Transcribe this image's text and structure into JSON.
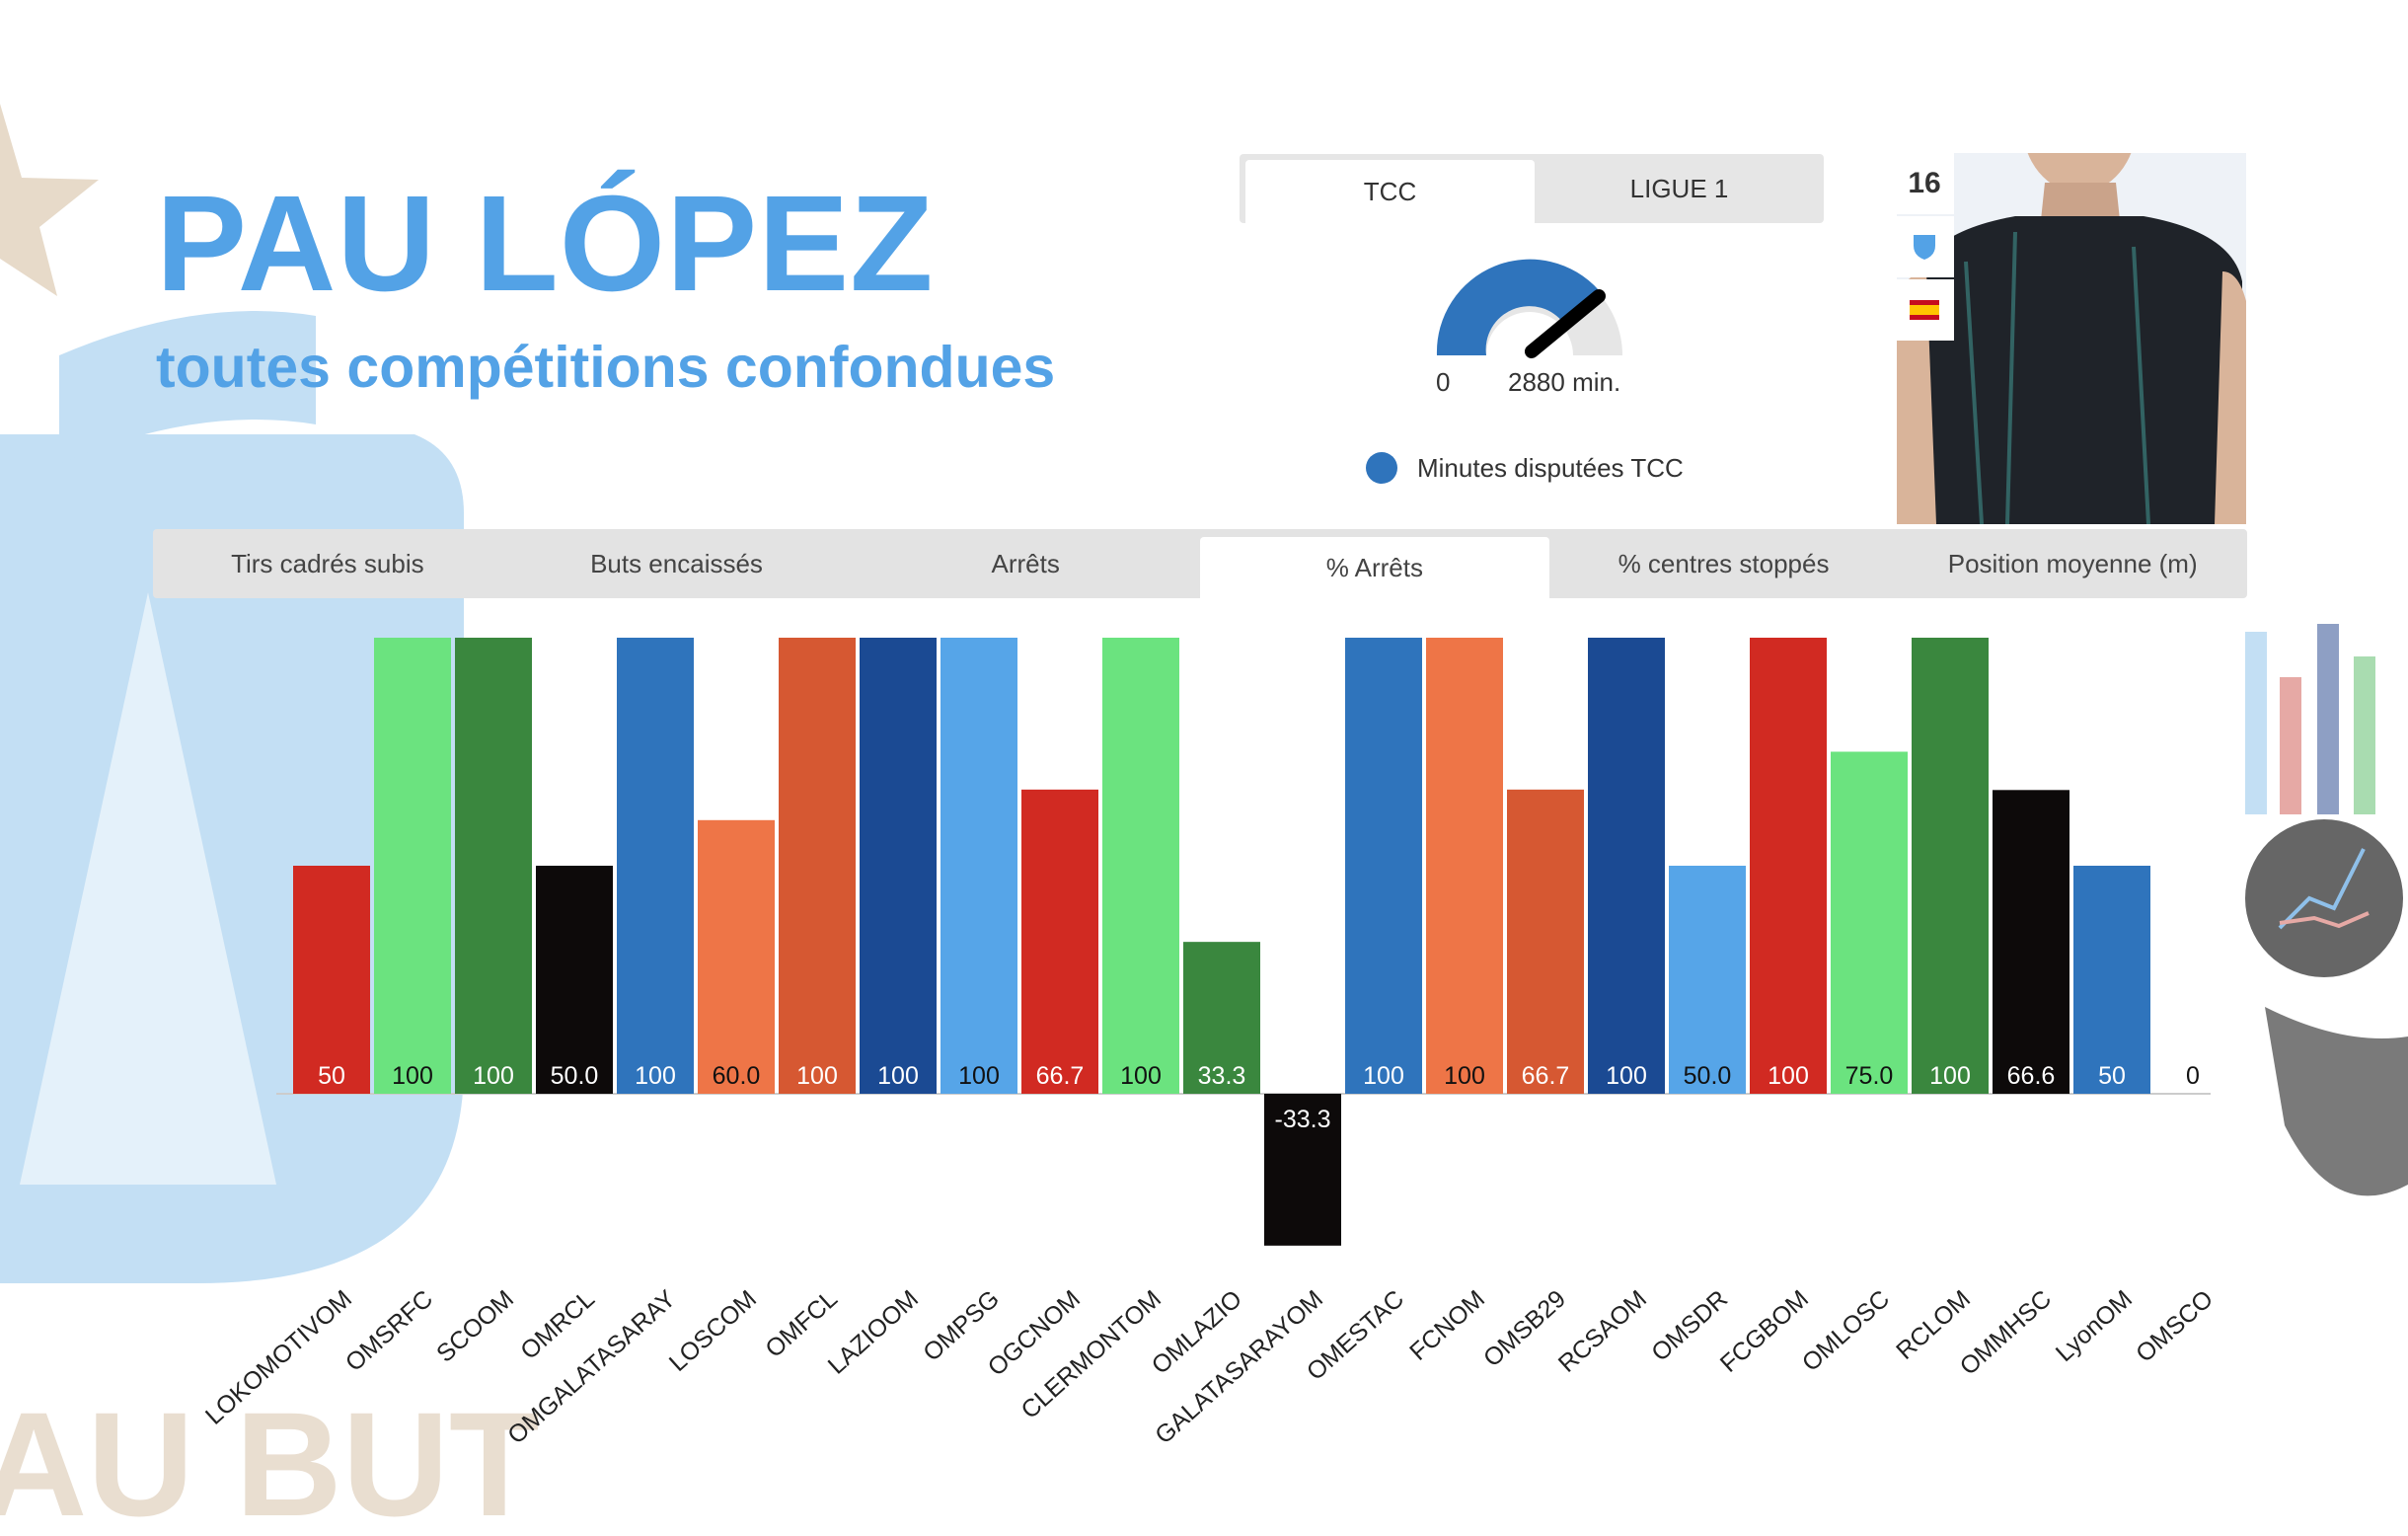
{
  "header": {
    "player_name": "PAU LÓPEZ",
    "subtitle": "toutes compétitions confondues",
    "background_text": "AU BUT"
  },
  "competition_tabs": [
    {
      "label": "TCC",
      "active": true
    },
    {
      "label": "LIGUE 1",
      "active": false
    }
  ],
  "gauge": {
    "min_label": "0",
    "value_label": "2880 min.",
    "legend": "Minutes disputées TCC",
    "color": "#2f74bc"
  },
  "player_card": {
    "number": "16",
    "icons": [
      "shield-icon",
      "flag-spain-icon"
    ]
  },
  "stat_tabs": [
    {
      "label": "Tirs cadrés subis",
      "active": false
    },
    {
      "label": "Buts encaissés",
      "active": false
    },
    {
      "label": "Arrêts",
      "active": false
    },
    {
      "label": "% Arrêts",
      "active": true
    },
    {
      "label": "% centres stoppés",
      "active": false
    },
    {
      "label": "Position moyenne (m)",
      "active": false
    }
  ],
  "chart_data": {
    "type": "bar",
    "categories": [
      "LOKOMOTIVOM",
      "OMSRFC",
      "SCOOM",
      "OMRCL",
      "OMGALATASARAY",
      "LOSCOM",
      "OMFCL",
      "LAZIOOM",
      "OMPSG",
      "OGCNOM",
      "CLERMONTOM",
      "OMLAZIO",
      "GALATASARAYOM",
      "OMESTAC",
      "FCNOM",
      "OMSB29",
      "RCSAOM",
      "OMSDR",
      "FCGBOM",
      "OMLOSC",
      "RCLOM",
      "OMMHSC",
      "LyonOM",
      "OMSCO"
    ],
    "values": [
      50,
      100,
      100,
      50.0,
      100,
      60.0,
      100,
      100,
      100,
      66.7,
      100,
      33.3,
      -33.3,
      100,
      100,
      66.7,
      100,
      50.0,
      100,
      75.0,
      100,
      66.6,
      50,
      0
    ],
    "value_labels": [
      "50",
      "100",
      "100",
      "50.0",
      "100",
      "60.0",
      "100",
      "100",
      "100",
      "66.7",
      "100",
      "33.3",
      "-33.3",
      "100",
      "100",
      "66.7",
      "100",
      "50.0",
      "100",
      "75.0",
      "100",
      "66.6",
      "50",
      "0"
    ],
    "colors": [
      "#d12a22",
      "#6be37f",
      "#3a873e",
      "#0d0a0a",
      "#2f74bc",
      "#ee7547",
      "#d65832",
      "#1b4a93",
      "#56a5e8",
      "#d12a22",
      "#6be37f",
      "#3a873e",
      "#0d0a0a",
      "#2f74bc",
      "#ee7547",
      "#d65832",
      "#1b4a93",
      "#56a5e8",
      "#d12a22",
      "#6be37f",
      "#3a873e",
      "#0d0a0a",
      "#2f74bc",
      "#ee7547"
    ],
    "label_colors": [
      "#ffffff",
      "#111111",
      "#ffffff",
      "#ffffff",
      "#ffffff",
      "#111111",
      "#ffffff",
      "#ffffff",
      "#111111",
      "#ffffff",
      "#111111",
      "#ffffff",
      "#ffffff",
      "#ffffff",
      "#111111",
      "#ffffff",
      "#ffffff",
      "#111111",
      "#ffffff",
      "#111111",
      "#ffffff",
      "#ffffff",
      "#ffffff",
      "#111111"
    ],
    "ylim": [
      -33.3,
      100
    ],
    "title": "",
    "xlabel": "",
    "ylabel": "",
    "legend": false,
    "grid": false
  }
}
